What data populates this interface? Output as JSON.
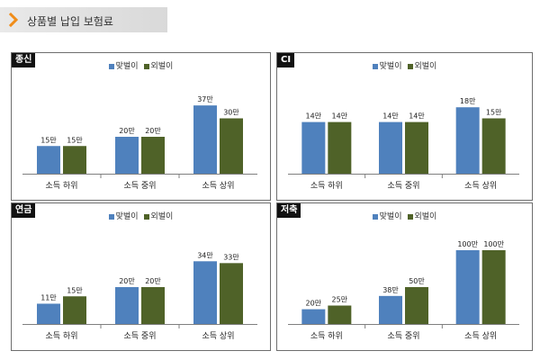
{
  "header": {
    "title": "상품별 납입 보험료",
    "icon": "chevron-right-icon",
    "accent_color": "#f08c18"
  },
  "series_colors": {
    "맞벌이": "#4f81bd",
    "외벌이": "#4f6228"
  },
  "chart_data": [
    {
      "type": "bar",
      "title": "종신",
      "categories": [
        "소득 하위",
        "소득 중위",
        "소득 상위"
      ],
      "series": [
        {
          "name": "맞벌이",
          "values": [
            15,
            20,
            37
          ],
          "labels": [
            "15만",
            "20만",
            "37만"
          ]
        },
        {
          "name": "외벌이",
          "values": [
            15,
            20,
            30
          ],
          "labels": [
            "15만",
            "20만",
            "30만"
          ]
        }
      ],
      "ylim": [
        0,
        40
      ],
      "legend": "top",
      "grid": false
    },
    {
      "type": "bar",
      "title": "CI",
      "categories": [
        "소득 하위",
        "소득 중위",
        "소득 상위"
      ],
      "series": [
        {
          "name": "맞벌이",
          "values": [
            14,
            14,
            18
          ],
          "labels": [
            "14만",
            "14만",
            "18만"
          ]
        },
        {
          "name": "외벌이",
          "values": [
            14,
            14,
            15
          ],
          "labels": [
            "14만",
            "14만",
            "15만"
          ]
        }
      ],
      "ylim": [
        0,
        20
      ],
      "legend": "top",
      "grid": false
    },
    {
      "type": "bar",
      "title": "연금",
      "categories": [
        "소득 하위",
        "소득 중위",
        "소득 상위"
      ],
      "series": [
        {
          "name": "맞벌이",
          "values": [
            11,
            20,
            34
          ],
          "labels": [
            "11만",
            "20만",
            "34만"
          ]
        },
        {
          "name": "외벌이",
          "values": [
            15,
            20,
            33
          ],
          "labels": [
            "15만",
            "20만",
            "33만"
          ]
        }
      ],
      "ylim": [
        0,
        40
      ],
      "legend": "top",
      "grid": false
    },
    {
      "type": "bar",
      "title": "저축",
      "categories": [
        "소득 하위",
        "소득 중위",
        "소득 상위"
      ],
      "series": [
        {
          "name": "맞벌이",
          "values": [
            20,
            38,
            100
          ],
          "labels": [
            "20만",
            "38만",
            "100만"
          ]
        },
        {
          "name": "외벌이",
          "values": [
            25,
            50,
            100
          ],
          "labels": [
            "25만",
            "50만",
            "100만"
          ]
        }
      ],
      "ylim": [
        0,
        100
      ],
      "legend": "top",
      "grid": false
    }
  ]
}
